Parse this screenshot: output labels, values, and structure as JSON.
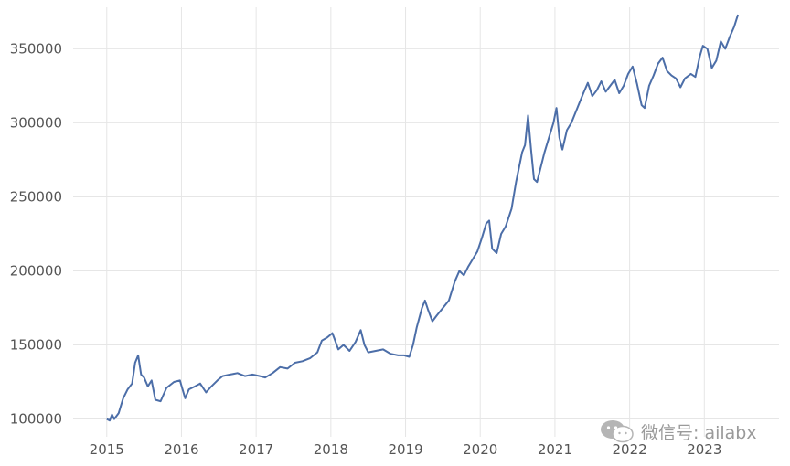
{
  "chart_data": {
    "type": "line",
    "title": "",
    "xlabel": "",
    "ylabel": "",
    "grid": true,
    "x_ticks": [
      "2015",
      "2016",
      "2017",
      "2018",
      "2019",
      "2020",
      "2021",
      "2022",
      "2023"
    ],
    "y_ticks": [
      "100000",
      "150000",
      "200000",
      "250000",
      "300000",
      "350000"
    ],
    "xlim": [
      2014.55,
      2024.0
    ],
    "ylim": [
      88000,
      378000
    ],
    "series": [
      {
        "color": "#4c6ea8",
        "points": [
          [
            2015.0,
            100000
          ],
          [
            2015.04,
            99000
          ],
          [
            2015.07,
            103000
          ],
          [
            2015.1,
            100000
          ],
          [
            2015.16,
            104000
          ],
          [
            2015.22,
            114000
          ],
          [
            2015.28,
            120000
          ],
          [
            2015.34,
            124000
          ],
          [
            2015.38,
            138000
          ],
          [
            2015.42,
            143000
          ],
          [
            2015.46,
            130000
          ],
          [
            2015.5,
            128000
          ],
          [
            2015.55,
            122000
          ],
          [
            2015.6,
            126000
          ],
          [
            2015.65,
            113000
          ],
          [
            2015.72,
            112000
          ],
          [
            2015.8,
            121000
          ],
          [
            2015.9,
            125000
          ],
          [
            2015.98,
            126000
          ],
          [
            2016.05,
            114000
          ],
          [
            2016.1,
            120000
          ],
          [
            2016.18,
            122000
          ],
          [
            2016.25,
            124000
          ],
          [
            2016.33,
            118000
          ],
          [
            2016.4,
            122000
          ],
          [
            2016.48,
            126000
          ],
          [
            2016.55,
            129000
          ],
          [
            2016.65,
            130000
          ],
          [
            2016.75,
            131000
          ],
          [
            2016.85,
            129000
          ],
          [
            2016.95,
            130000
          ],
          [
            2017.05,
            129000
          ],
          [
            2017.12,
            128000
          ],
          [
            2017.22,
            131000
          ],
          [
            2017.32,
            135000
          ],
          [
            2017.42,
            134000
          ],
          [
            2017.52,
            138000
          ],
          [
            2017.62,
            139000
          ],
          [
            2017.72,
            141000
          ],
          [
            2017.82,
            145000
          ],
          [
            2017.88,
            153000
          ],
          [
            2017.95,
            155000
          ],
          [
            2018.02,
            158000
          ],
          [
            2018.05,
            154000
          ],
          [
            2018.1,
            147000
          ],
          [
            2018.17,
            150000
          ],
          [
            2018.25,
            146000
          ],
          [
            2018.33,
            152000
          ],
          [
            2018.4,
            160000
          ],
          [
            2018.45,
            150000
          ],
          [
            2018.5,
            145000
          ],
          [
            2018.6,
            146000
          ],
          [
            2018.7,
            147000
          ],
          [
            2018.8,
            144000
          ],
          [
            2018.9,
            143000
          ],
          [
            2018.98,
            143000
          ],
          [
            2019.05,
            142000
          ],
          [
            2019.1,
            150000
          ],
          [
            2019.15,
            162000
          ],
          [
            2019.22,
            175000
          ],
          [
            2019.26,
            180000
          ],
          [
            2019.3,
            174000
          ],
          [
            2019.36,
            166000
          ],
          [
            2019.42,
            170000
          ],
          [
            2019.5,
            175000
          ],
          [
            2019.58,
            180000
          ],
          [
            2019.66,
            193000
          ],
          [
            2019.72,
            200000
          ],
          [
            2019.78,
            197000
          ],
          [
            2019.84,
            203000
          ],
          [
            2019.9,
            208000
          ],
          [
            2019.96,
            213000
          ],
          [
            2020.02,
            222000
          ],
          [
            2020.08,
            232000
          ],
          [
            2020.12,
            234000
          ],
          [
            2020.16,
            215000
          ],
          [
            2020.22,
            212000
          ],
          [
            2020.28,
            225000
          ],
          [
            2020.34,
            230000
          ],
          [
            2020.42,
            242000
          ],
          [
            2020.48,
            260000
          ],
          [
            2020.52,
            270000
          ],
          [
            2020.56,
            280000
          ],
          [
            2020.6,
            285000
          ],
          [
            2020.64,
            305000
          ],
          [
            2020.68,
            282000
          ],
          [
            2020.72,
            262000
          ],
          [
            2020.76,
            260000
          ],
          [
            2020.8,
            268000
          ],
          [
            2020.86,
            280000
          ],
          [
            2020.92,
            290000
          ],
          [
            2020.98,
            300000
          ],
          [
            2021.02,
            310000
          ],
          [
            2021.06,
            290000
          ],
          [
            2021.1,
            282000
          ],
          [
            2021.16,
            295000
          ],
          [
            2021.22,
            300000
          ],
          [
            2021.3,
            310000
          ],
          [
            2021.38,
            320000
          ],
          [
            2021.44,
            327000
          ],
          [
            2021.5,
            318000
          ],
          [
            2021.56,
            322000
          ],
          [
            2021.62,
            328000
          ],
          [
            2021.68,
            321000
          ],
          [
            2021.74,
            325000
          ],
          [
            2021.8,
            329000
          ],
          [
            2021.86,
            320000
          ],
          [
            2021.92,
            325000
          ],
          [
            2021.98,
            333000
          ],
          [
            2022.04,
            338000
          ],
          [
            2022.1,
            326000
          ],
          [
            2022.16,
            312000
          ],
          [
            2022.2,
            310000
          ],
          [
            2022.26,
            325000
          ],
          [
            2022.32,
            332000
          ],
          [
            2022.38,
            340000
          ],
          [
            2022.44,
            344000
          ],
          [
            2022.5,
            335000
          ],
          [
            2022.56,
            332000
          ],
          [
            2022.62,
            330000
          ],
          [
            2022.68,
            324000
          ],
          [
            2022.74,
            330000
          ],
          [
            2022.82,
            333000
          ],
          [
            2022.88,
            331000
          ],
          [
            2022.94,
            345000
          ],
          [
            2022.98,
            352000
          ],
          [
            2023.04,
            350000
          ],
          [
            2023.1,
            337000
          ],
          [
            2023.16,
            342000
          ],
          [
            2023.22,
            355000
          ],
          [
            2023.28,
            350000
          ],
          [
            2023.34,
            358000
          ],
          [
            2023.4,
            365000
          ],
          [
            2023.45,
            373000
          ]
        ]
      }
    ]
  },
  "watermark": {
    "text": "微信号: ailabx",
    "icon": "wechat-icon"
  }
}
